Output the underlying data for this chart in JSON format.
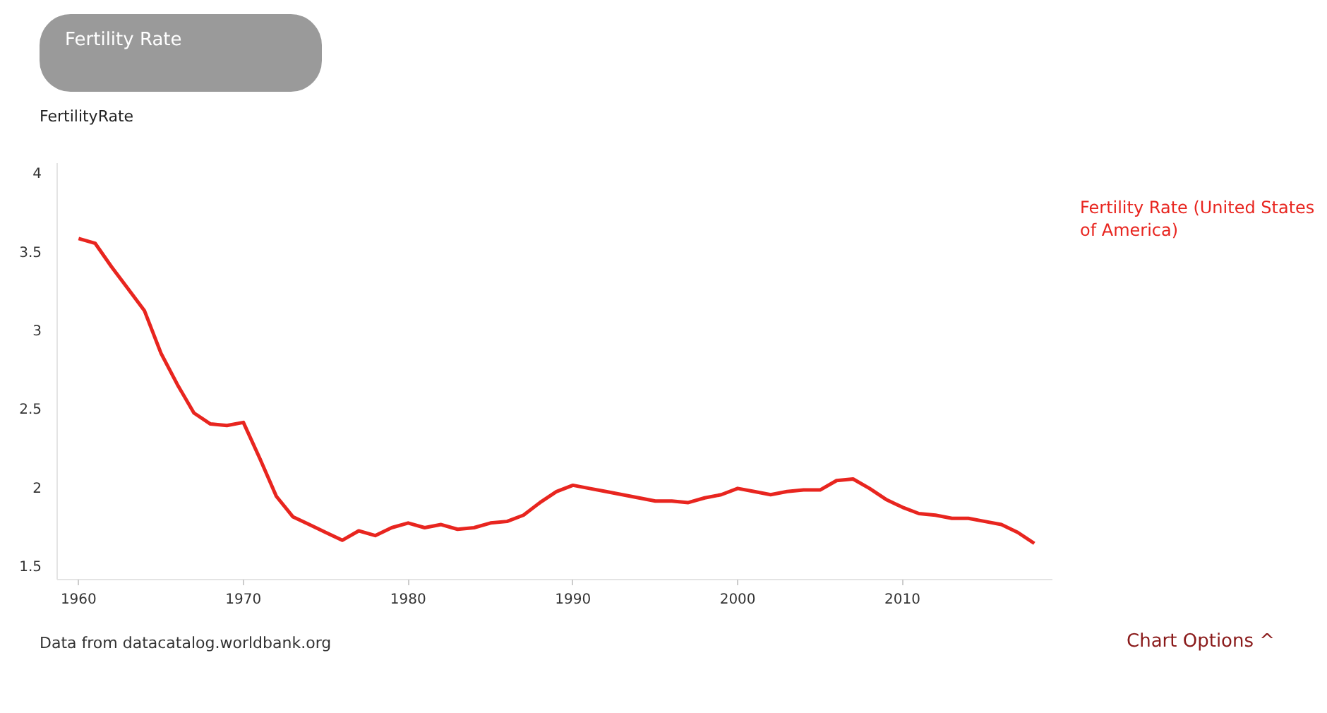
{
  "chart_data": {
    "type": "line",
    "ylabel": "FertilityRate",
    "annotations": [
      "Fertility Rate",
      "Data from datacatalog.worldbank.org",
      "Chart Options ^"
    ],
    "x": [
      1960,
      1961,
      1962,
      1963,
      1964,
      1965,
      1966,
      1967,
      1968,
      1969,
      1970,
      1971,
      1972,
      1973,
      1974,
      1975,
      1976,
      1977,
      1978,
      1979,
      1980,
      1981,
      1982,
      1983,
      1984,
      1985,
      1986,
      1987,
      1988,
      1989,
      1990,
      1991,
      1992,
      1993,
      1994,
      1995,
      1996,
      1997,
      1998,
      1999,
      2000,
      2001,
      2002,
      2003,
      2004,
      2005,
      2006,
      2007,
      2008,
      2009,
      2010,
      2011,
      2012,
      2013,
      2014,
      2015,
      2016,
      2017,
      2018
    ],
    "series": [
      {
        "name": "Fertility Rate (United States of America)",
        "color": "#e8251f",
        "values": [
          3.58,
          3.55,
          3.4,
          3.26,
          3.12,
          2.85,
          2.65,
          2.47,
          2.4,
          2.39,
          2.41,
          2.18,
          1.94,
          1.81,
          1.76,
          1.71,
          1.66,
          1.72,
          1.69,
          1.74,
          1.77,
          1.74,
          1.76,
          1.73,
          1.74,
          1.77,
          1.78,
          1.82,
          1.9,
          1.97,
          2.01,
          1.99,
          1.97,
          1.95,
          1.93,
          1.91,
          1.91,
          1.9,
          1.93,
          1.95,
          1.99,
          1.97,
          1.95,
          1.97,
          1.98,
          1.98,
          2.04,
          2.05,
          1.99,
          1.92,
          1.87,
          1.83,
          1.82,
          1.8,
          1.8,
          1.78,
          1.76,
          1.71,
          1.64
        ]
      }
    ],
    "xlim": [
      1958.7,
      2019.1
    ],
    "ylim": [
      1.41,
      4.06
    ],
    "xticks": [
      1960,
      1970,
      1980,
      1990,
      2000,
      2010
    ],
    "yticks": [
      1.5,
      2,
      2.5,
      3,
      3.5,
      4
    ],
    "grid": false,
    "line_style": "solid"
  }
}
